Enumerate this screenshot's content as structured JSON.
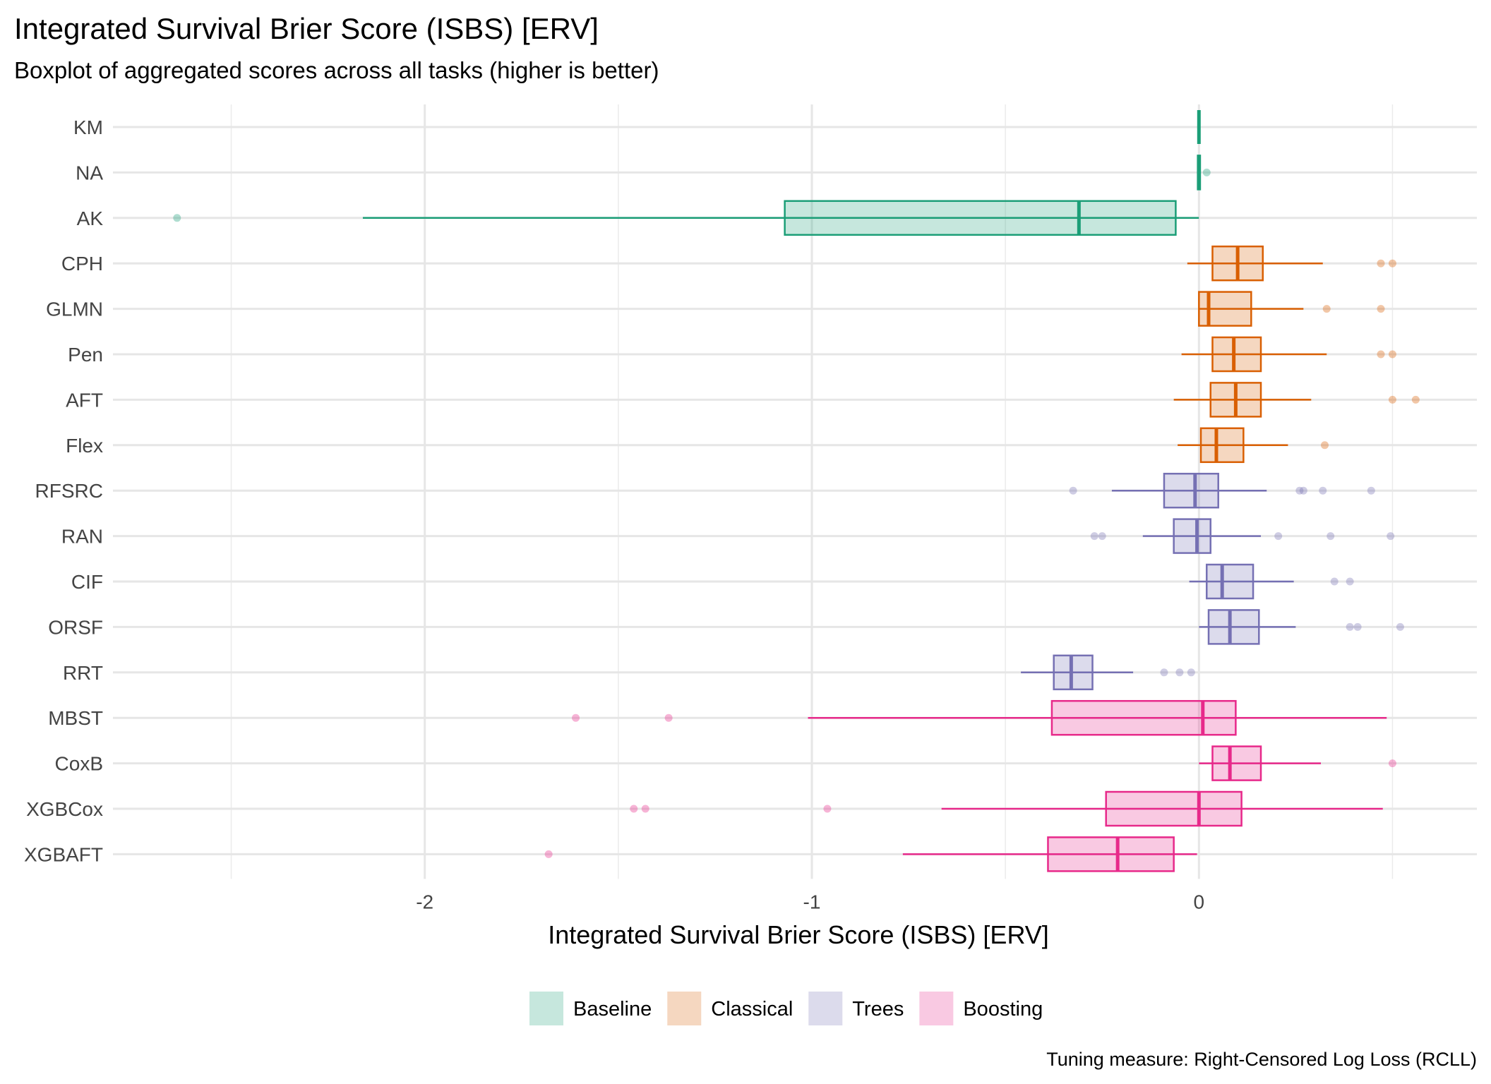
{
  "chart_data": {
    "type": "boxplot",
    "orientation": "horizontal",
    "title": "Integrated Survival Brier Score (ISBS) [ERV]",
    "subtitle": "Boxplot of aggregated scores across all tasks (higher is better)",
    "xlabel": "Integrated Survival Brier Score (ISBS) [ERV]",
    "caption": "Tuning measure: Right-Censored Log Loss (RCLL)",
    "xlim": [
      -2.82,
      0.7
    ],
    "x_ticks": [
      -2,
      -1,
      0
    ],
    "x_tick_labels": [
      "-2",
      "-1",
      "0"
    ],
    "minor_gridlines": [
      -2.5,
      -1.5,
      -0.5,
      0.5
    ],
    "legend_position": "bottom",
    "groups": [
      {
        "name": "Baseline",
        "color": "#1B9E77"
      },
      {
        "name": "Classical",
        "color": "#D95F02"
      },
      {
        "name": "Trees",
        "color": "#7570B3"
      },
      {
        "name": "Boosting",
        "color": "#E7298A"
      }
    ],
    "series": [
      {
        "name": "KM",
        "group": "Baseline",
        "whisker_low": 0,
        "q1": 0,
        "median": 0,
        "q3": 0,
        "whisker_high": 0,
        "outliers": []
      },
      {
        "name": "NA",
        "group": "Baseline",
        "whisker_low": -0.005,
        "q1": -0.003,
        "median": 0,
        "q3": 0.003,
        "whisker_high": 0.005,
        "outliers": [
          0.02
        ]
      },
      {
        "name": "AK",
        "group": "Baseline",
        "whisker_low": -2.16,
        "q1": -1.07,
        "median": -0.31,
        "q3": -0.06,
        "whisker_high": 0,
        "outliers": [
          -2.64
        ]
      },
      {
        "name": "CPH",
        "group": "Classical",
        "whisker_low": -0.03,
        "q1": 0.035,
        "median": 0.1,
        "q3": 0.165,
        "whisker_high": 0.32,
        "outliers": [
          0.47,
          0.5
        ]
      },
      {
        "name": "GLMN",
        "group": "Classical",
        "whisker_low": 0,
        "q1": 0,
        "median": 0.025,
        "q3": 0.135,
        "whisker_high": 0.27,
        "outliers": [
          0.33,
          0.47
        ]
      },
      {
        "name": "Pen",
        "group": "Classical",
        "whisker_low": -0.045,
        "q1": 0.035,
        "median": 0.09,
        "q3": 0.16,
        "whisker_high": 0.33,
        "outliers": [
          0.47,
          0.5
        ]
      },
      {
        "name": "AFT",
        "group": "Classical",
        "whisker_low": -0.065,
        "q1": 0.03,
        "median": 0.095,
        "q3": 0.16,
        "whisker_high": 0.29,
        "outliers": [
          0.5,
          0.56
        ]
      },
      {
        "name": "Flex",
        "group": "Classical",
        "whisker_low": -0.055,
        "q1": 0.005,
        "median": 0.045,
        "q3": 0.115,
        "whisker_high": 0.23,
        "outliers": [
          0.325
        ]
      },
      {
        "name": "RFSRC",
        "group": "Trees",
        "whisker_low": -0.225,
        "q1": -0.09,
        "median": -0.01,
        "q3": 0.05,
        "whisker_high": 0.175,
        "outliers": [
          -0.325,
          0.26,
          0.27,
          0.32,
          0.445
        ]
      },
      {
        "name": "RAN",
        "group": "Trees",
        "whisker_low": -0.145,
        "q1": -0.065,
        "median": -0.005,
        "q3": 0.03,
        "whisker_high": 0.16,
        "outliers": [
          -0.27,
          -0.25,
          0.205,
          0.34,
          0.495
        ]
      },
      {
        "name": "CIF",
        "group": "Trees",
        "whisker_low": -0.025,
        "q1": 0.02,
        "median": 0.06,
        "q3": 0.14,
        "whisker_high": 0.245,
        "outliers": [
          0.35,
          0.39
        ]
      },
      {
        "name": "ORSF",
        "group": "Trees",
        "whisker_low": 0,
        "q1": 0.025,
        "median": 0.08,
        "q3": 0.155,
        "whisker_high": 0.25,
        "outliers": [
          0.39,
          0.41,
          0.52
        ]
      },
      {
        "name": "RRT",
        "group": "Trees",
        "whisker_low": -0.46,
        "q1": -0.375,
        "median": -0.33,
        "q3": -0.275,
        "whisker_high": -0.17,
        "outliers": [
          -0.09,
          -0.05,
          -0.02
        ]
      },
      {
        "name": "MBST",
        "group": "Boosting",
        "whisker_low": -1.01,
        "q1": -0.38,
        "median": 0.01,
        "q3": 0.095,
        "whisker_high": 0.485,
        "outliers": [
          -1.61,
          -1.37
        ]
      },
      {
        "name": "CoxB",
        "group": "Boosting",
        "whisker_low": 0,
        "q1": 0.035,
        "median": 0.08,
        "q3": 0.16,
        "whisker_high": 0.315,
        "outliers": [
          0.5
        ]
      },
      {
        "name": "XGBCox",
        "group": "Boosting",
        "whisker_low": -0.665,
        "q1": -0.24,
        "median": 0,
        "q3": 0.11,
        "whisker_high": 0.475,
        "outliers": [
          -1.46,
          -1.43,
          -0.96
        ]
      },
      {
        "name": "XGBAFT",
        "group": "Boosting",
        "whisker_low": -0.765,
        "q1": -0.39,
        "median": -0.21,
        "q3": -0.065,
        "whisker_high": -0.005,
        "outliers": [
          -1.68
        ]
      }
    ]
  }
}
